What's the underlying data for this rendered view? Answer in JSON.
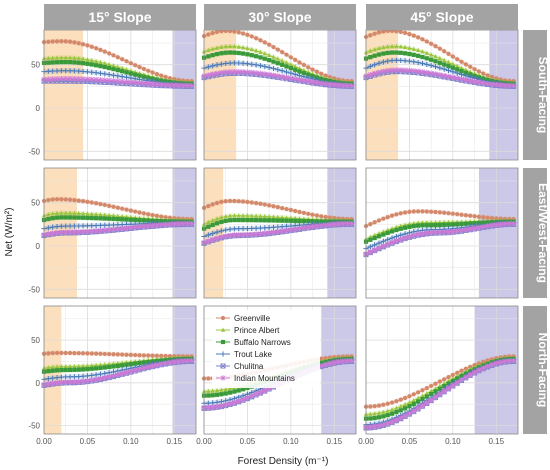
{
  "chart_data": {
    "type": "line",
    "xlabel": "Forest Density (m⁻¹)",
    "ylabel": "Net (W/m²)",
    "xlim": [
      0,
      0.175
    ],
    "ylim": [
      -60,
      90
    ],
    "xticks": [
      0,
      0.05,
      0.1,
      0.15
    ],
    "xtick_labels": [
      "0.00",
      "0.05",
      "0.10",
      "0.15"
    ],
    "yticks": [
      -50,
      0,
      50
    ],
    "ytick_labels": [
      "-50",
      "0",
      "50"
    ],
    "grid": true,
    "legend_position": "inside-bottom-middle",
    "columns": [
      "15° Slope",
      "30° Slope",
      "45° Slope"
    ],
    "rows": [
      "South-Facing",
      "East/West-Facing",
      "North-Facing"
    ],
    "series": [
      {
        "name": "Greenville",
        "color": "#d4886a",
        "marker": "circle"
      },
      {
        "name": "Prince Albert",
        "color": "#9bc53d",
        "marker": "triangle"
      },
      {
        "name": "Buffalo Narrows",
        "color": "#3a9a3a",
        "marker": "square"
      },
      {
        "name": "Trout Lake",
        "color": "#4a7ab8",
        "marker": "plus"
      },
      {
        "name": "Chulitna",
        "color": "#8080cc",
        "marker": "square-x"
      },
      {
        "name": "Indian Mountains",
        "color": "#d07ad6",
        "marker": "asterisk"
      }
    ],
    "panels": [
      {
        "row": 0,
        "col": 0,
        "orange": [
          0,
          0.045
        ],
        "purple": [
          0.148,
          0.175
        ],
        "series": [
          {
            "name": "Greenville",
            "start": 76,
            "peak": 77,
            "peak_x": 0.02,
            "end": 31
          },
          {
            "name": "Prince Albert",
            "start": 57,
            "peak": 58,
            "peak_x": 0.025,
            "end": 29
          },
          {
            "name": "Buffalo Narrows",
            "start": 52,
            "peak": 53,
            "peak_x": 0.025,
            "end": 28
          },
          {
            "name": "Trout Lake",
            "start": 42,
            "peak": 43,
            "peak_x": 0.025,
            "end": 27
          },
          {
            "name": "Chulitna",
            "start": 31,
            "peak": 31,
            "peak_x": 0.025,
            "end": 25
          },
          {
            "name": "Indian Mountains",
            "start": 33,
            "peak": 34,
            "peak_x": 0.025,
            "end": 26
          }
        ]
      },
      {
        "row": 0,
        "col": 1,
        "orange": [
          0,
          0.037
        ],
        "purple": [
          0.142,
          0.175
        ],
        "series": [
          {
            "name": "Greenville",
            "start": 83,
            "peak": 89,
            "peak_x": 0.025,
            "end": 31
          },
          {
            "name": "Prince Albert",
            "start": 65,
            "peak": 71,
            "peak_x": 0.03,
            "end": 29
          },
          {
            "name": "Buffalo Narrows",
            "start": 58,
            "peak": 64,
            "peak_x": 0.03,
            "end": 28
          },
          {
            "name": "Trout Lake",
            "start": 46,
            "peak": 52,
            "peak_x": 0.035,
            "end": 27
          },
          {
            "name": "Chulitna",
            "start": 35,
            "peak": 40,
            "peak_x": 0.035,
            "end": 25
          },
          {
            "name": "Indian Mountains",
            "start": 37,
            "peak": 42,
            "peak_x": 0.035,
            "end": 26
          }
        ]
      },
      {
        "row": 0,
        "col": 2,
        "orange": [
          0,
          0.037
        ],
        "purple": [
          0.142,
          0.175
        ],
        "series": [
          {
            "name": "Greenville",
            "start": 82,
            "peak": 89,
            "peak_x": 0.028,
            "end": 31
          },
          {
            "name": "Prince Albert",
            "start": 64,
            "peak": 71,
            "peak_x": 0.032,
            "end": 29
          },
          {
            "name": "Buffalo Narrows",
            "start": 57,
            "peak": 64,
            "peak_x": 0.032,
            "end": 28
          },
          {
            "name": "Trout Lake",
            "start": 46,
            "peak": 55,
            "peak_x": 0.035,
            "end": 27
          },
          {
            "name": "Chulitna",
            "start": 35,
            "peak": 42,
            "peak_x": 0.035,
            "end": 25
          },
          {
            "name": "Indian Mountains",
            "start": 37,
            "peak": 44,
            "peak_x": 0.035,
            "end": 26
          }
        ]
      },
      {
        "row": 1,
        "col": 0,
        "orange": [
          0,
          0.038
        ],
        "purple": [
          0.148,
          0.175
        ],
        "series": [
          {
            "name": "Greenville",
            "start": 52,
            "peak": 54,
            "peak_x": 0.015,
            "end": 31
          },
          {
            "name": "Prince Albert",
            "start": 35,
            "peak": 38,
            "peak_x": 0.02,
            "end": 29
          },
          {
            "name": "Buffalo Narrows",
            "start": 30,
            "peak": 33,
            "peak_x": 0.02,
            "end": 28
          },
          {
            "name": "Trout Lake",
            "start": 20,
            "peak": 23,
            "peak_x": 0.025,
            "end": 27
          },
          {
            "name": "Chulitna",
            "start": 12,
            "peak": 15,
            "peak_x": 0.025,
            "end": 25
          },
          {
            "name": "Indian Mountains",
            "start": 13,
            "peak": 16,
            "peak_x": 0.025,
            "end": 26
          }
        ]
      },
      {
        "row": 1,
        "col": 1,
        "orange": [
          0,
          0.022
        ],
        "purple": [
          0.142,
          0.175
        ],
        "series": [
          {
            "name": "Greenville",
            "start": 44,
            "peak": 52,
            "peak_x": 0.03,
            "end": 31
          },
          {
            "name": "Prince Albert",
            "start": 25,
            "peak": 35,
            "peak_x": 0.035,
            "end": 29
          },
          {
            "name": "Buffalo Narrows",
            "start": 20,
            "peak": 30,
            "peak_x": 0.035,
            "end": 28
          },
          {
            "name": "Trout Lake",
            "start": 11,
            "peak": 20,
            "peak_x": 0.04,
            "end": 27
          },
          {
            "name": "Chulitna",
            "start": 3,
            "peak": 12,
            "peak_x": 0.04,
            "end": 25
          },
          {
            "name": "Indian Mountains",
            "start": 4,
            "peak": 13,
            "peak_x": 0.04,
            "end": 26
          }
        ]
      },
      {
        "row": 1,
        "col": 2,
        "orange": null,
        "purple": [
          0.13,
          0.175
        ],
        "series": [
          {
            "name": "Greenville",
            "start": 23,
            "peak": 40,
            "peak_x": 0.06,
            "end": 31
          },
          {
            "name": "Prince Albert",
            "start": 8,
            "peak": 27,
            "peak_x": 0.07,
            "end": 29
          },
          {
            "name": "Buffalo Narrows",
            "start": 5,
            "peak": 24,
            "peak_x": 0.07,
            "end": 28
          },
          {
            "name": "Trout Lake",
            "start": -3,
            "peak": 19,
            "peak_x": 0.08,
            "end": 27
          },
          {
            "name": "Chulitna",
            "start": -10,
            "peak": 15,
            "peak_x": 0.085,
            "end": 25
          },
          {
            "name": "Indian Mountains",
            "start": -9,
            "peak": 16,
            "peak_x": 0.085,
            "end": 26
          }
        ]
      },
      {
        "row": 2,
        "col": 0,
        "orange": [
          0,
          0.02
        ],
        "purple": [
          0.148,
          0.175
        ],
        "series": [
          {
            "name": "Greenville",
            "start": 34,
            "peak": 35,
            "peak_x": 0.015,
            "end": 31
          },
          {
            "name": "Prince Albert",
            "start": 17,
            "peak": 19,
            "peak_x": 0.025,
            "end": 29
          },
          {
            "name": "Buffalo Narrows",
            "start": 13,
            "peak": 15,
            "peak_x": 0.025,
            "end": 28
          },
          {
            "name": "Trout Lake",
            "start": 4,
            "peak": 7,
            "peak_x": 0.03,
            "end": 27
          },
          {
            "name": "Chulitna",
            "start": -3,
            "peak": 0,
            "peak_x": 0.03,
            "end": 25
          },
          {
            "name": "Indian Mountains",
            "start": -2,
            "peak": 1,
            "peak_x": 0.03,
            "end": 26
          }
        ]
      },
      {
        "row": 2,
        "col": 1,
        "orange": null,
        "purple": [
          0.135,
          0.175
        ],
        "series": [
          {
            "name": "Greenville",
            "start": 5,
            "peak": 5,
            "peak_x": 0,
            "end": 31
          },
          {
            "name": "Prince Albert",
            "start": -10,
            "peak": -10,
            "peak_x": 0,
            "end": 29
          },
          {
            "name": "Buffalo Narrows",
            "start": -15,
            "peak": -15,
            "peak_x": 0,
            "end": 28
          },
          {
            "name": "Trout Lake",
            "start": -24,
            "peak": -24,
            "peak_x": 0,
            "end": 27
          },
          {
            "name": "Chulitna",
            "start": -30,
            "peak": -30,
            "peak_x": 0,
            "end": 25
          },
          {
            "name": "Indian Mountains",
            "start": -29,
            "peak": -29,
            "peak_x": 0,
            "end": 26
          }
        ]
      },
      {
        "row": 2,
        "col": 2,
        "orange": null,
        "purple": [
          0.125,
          0.175
        ],
        "series": [
          {
            "name": "Greenville",
            "start": -28,
            "peak": -28,
            "peak_x": 0,
            "end": 31
          },
          {
            "name": "Prince Albert",
            "start": -37,
            "peak": -37,
            "peak_x": 0,
            "end": 29
          },
          {
            "name": "Buffalo Narrows",
            "start": -42,
            "peak": -42,
            "peak_x": 0,
            "end": 28
          },
          {
            "name": "Trout Lake",
            "start": -49,
            "peak": -49,
            "peak_x": 0,
            "end": 27
          },
          {
            "name": "Chulitna",
            "start": -53,
            "peak": -53,
            "peak_x": 0,
            "end": 25
          },
          {
            "name": "Indian Mountains",
            "start": -52,
            "peak": -52,
            "peak_x": 0,
            "end": 26
          }
        ]
      }
    ]
  },
  "colors": {
    "strip_bg": "#a3a3a3",
    "panel_border": "#333333",
    "grid": "#e6e6e6",
    "orange_band": "#fbd9b0",
    "purple_band": "#c6c2e6"
  }
}
